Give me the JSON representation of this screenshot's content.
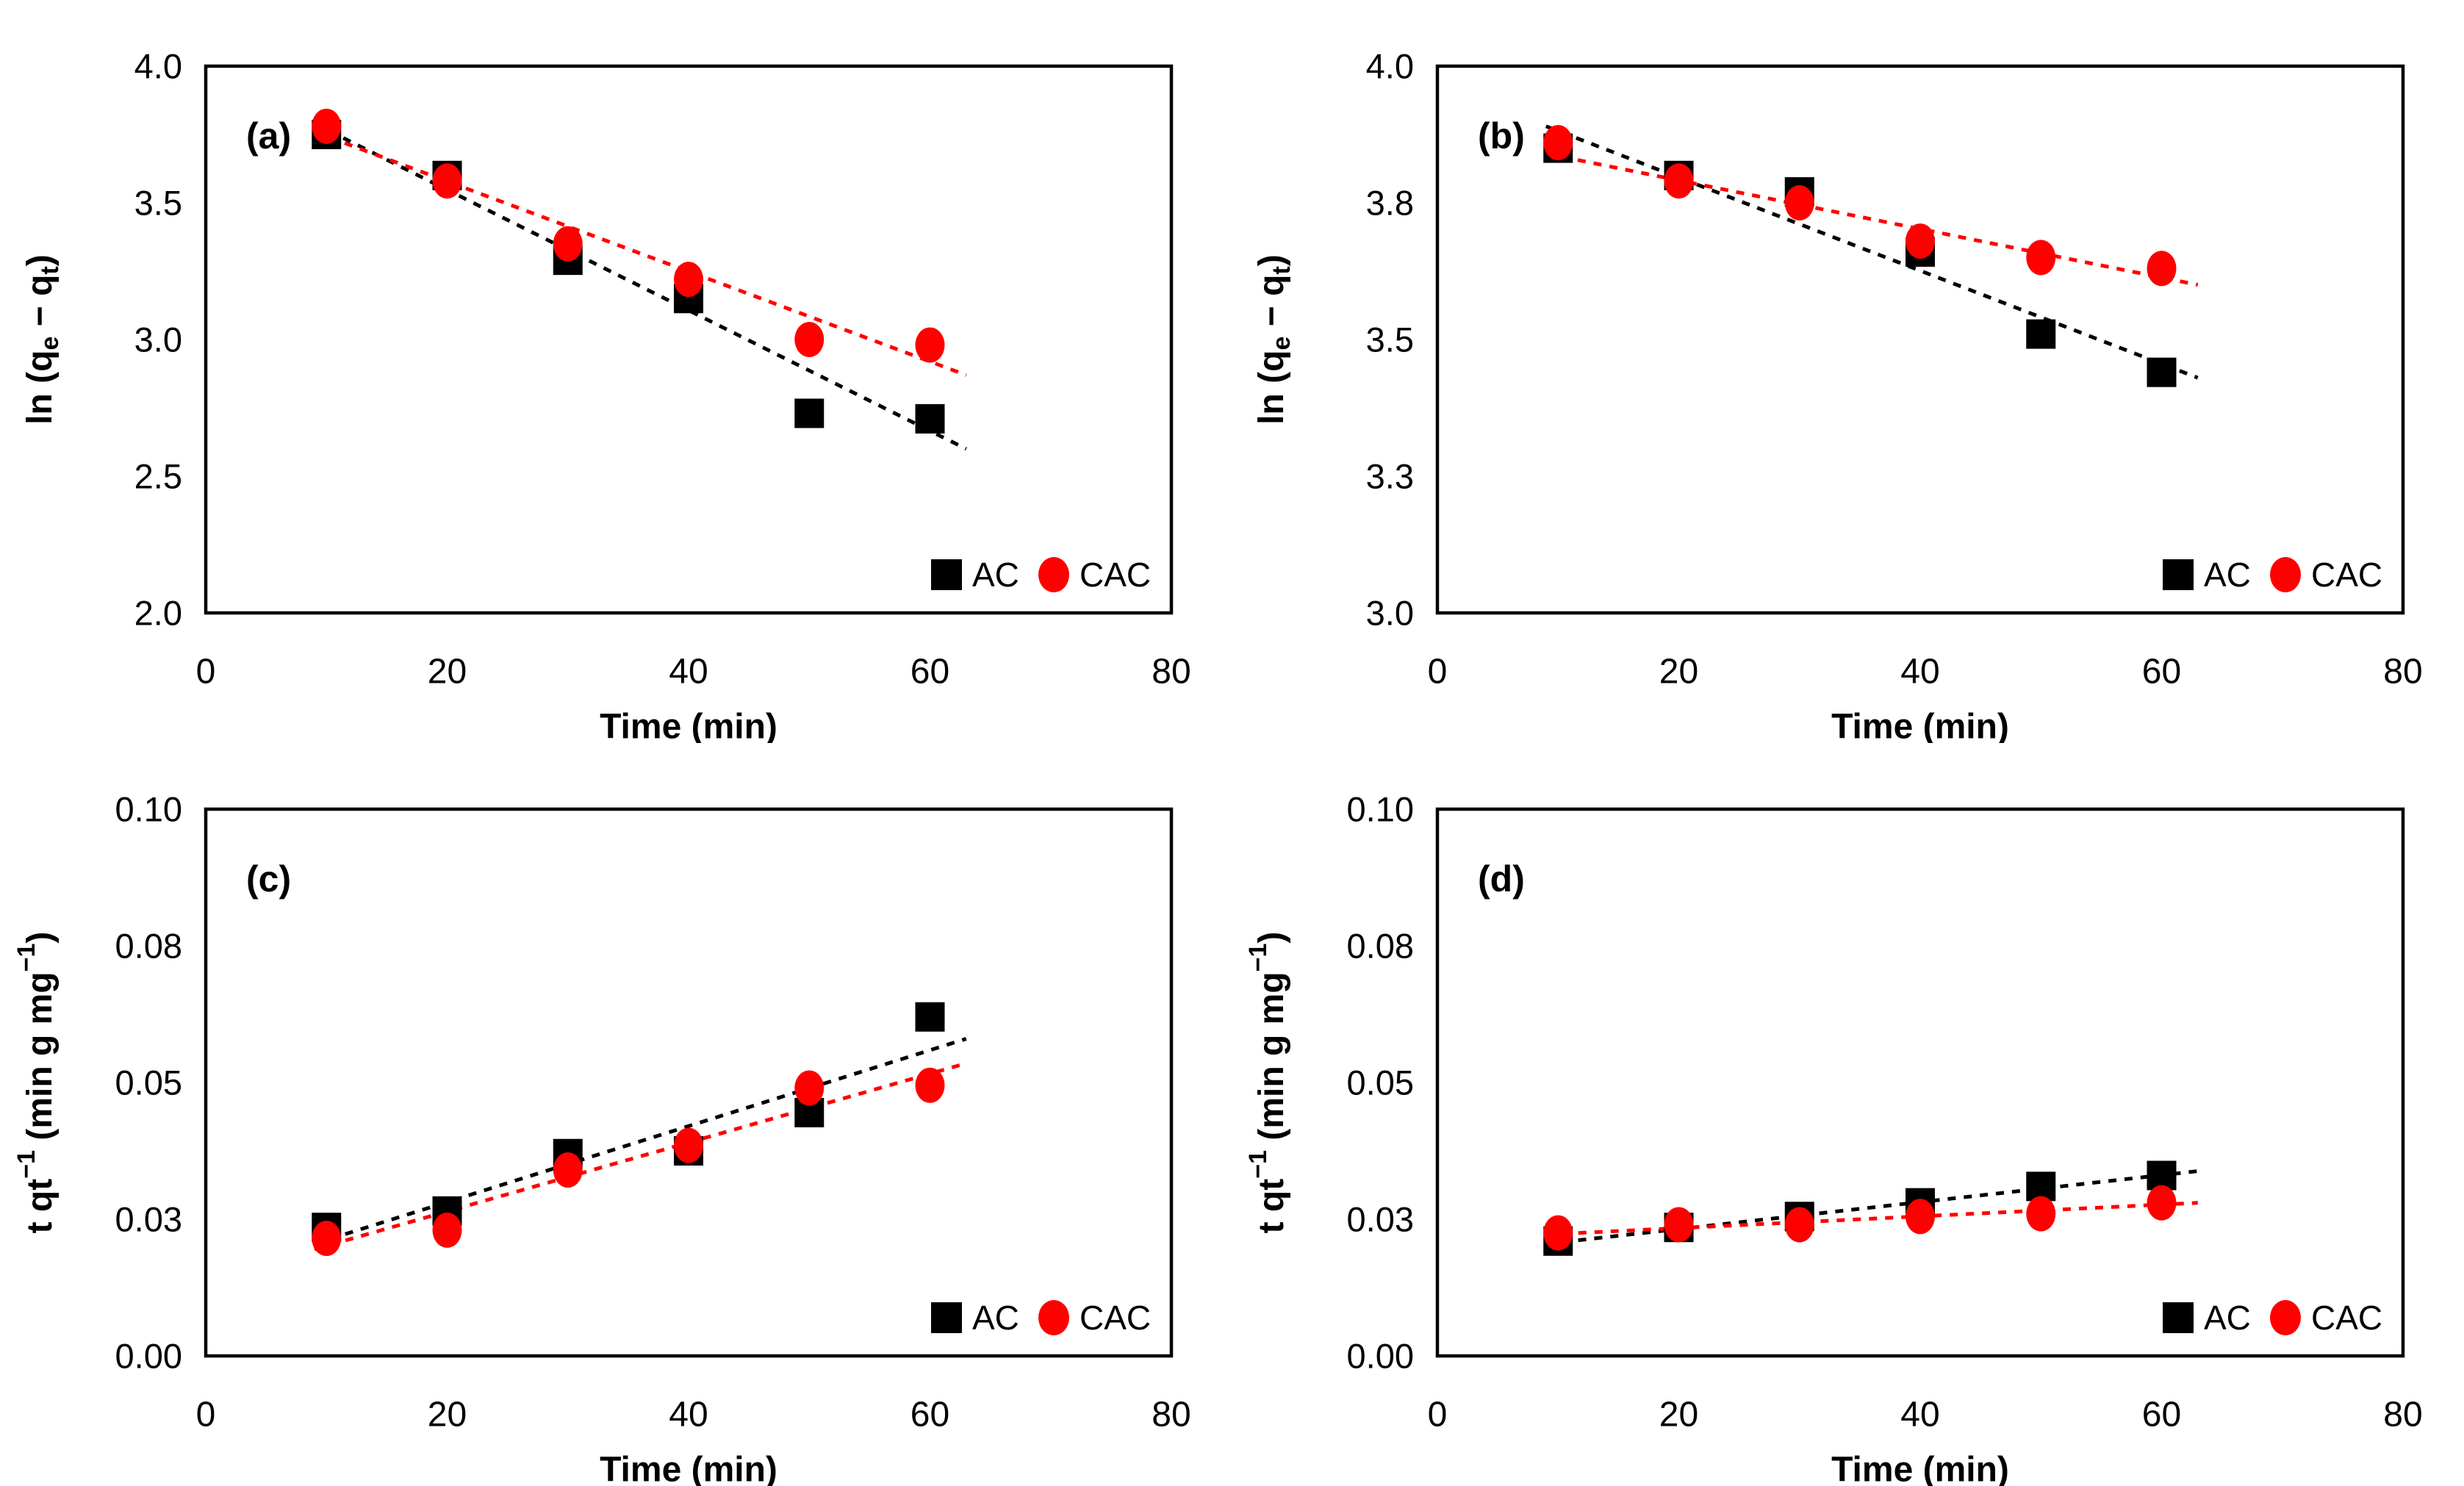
{
  "figure": {
    "background": "#ffffff",
    "text_color": "#000000",
    "series_colors": {
      "AC": "#000000",
      "CAC": "#ff0000"
    }
  },
  "chart_data": [
    {
      "type": "scatter",
      "panel_label": "(a)",
      "xlabel": "Time (min)",
      "ylabel": "ln (qe − qt)",
      "ylabel_rich": [
        {
          "t": "ln (q"
        },
        {
          "t": "e",
          "script": "sub"
        },
        {
          "t": " − q"
        },
        {
          "t": "t",
          "script": "sub"
        },
        {
          "t": ")"
        }
      ],
      "xlim": [
        0,
        80
      ],
      "ylim": [
        2.0,
        4.0
      ],
      "xtick_values": [
        0,
        20,
        40,
        60,
        80
      ],
      "xtick_labels": [
        "0",
        "20",
        "40",
        "60",
        "80"
      ],
      "ytick_values": [
        2.0,
        2.5,
        3.0,
        3.5,
        4.0
      ],
      "ytick_labels": [
        "2.0",
        "2.5",
        "3.0",
        "3.5",
        "4.0"
      ],
      "grid": false,
      "legend_position": "bottom-right",
      "series": [
        {
          "name": "AC",
          "marker": "square",
          "color": "#000000",
          "x": [
            10,
            20,
            30,
            40,
            50,
            60
          ],
          "y": [
            3.75,
            3.6,
            3.29,
            3.15,
            2.73,
            2.71
          ],
          "trendline": {
            "style": "dashed",
            "x": [
              9,
              63
            ],
            "y": [
              3.79,
              2.6
            ]
          }
        },
        {
          "name": "CAC",
          "marker": "circle",
          "color": "#ff0000",
          "x": [
            10,
            20,
            30,
            40,
            50,
            60
          ],
          "y": [
            3.78,
            3.58,
            3.35,
            3.22,
            3.0,
            2.98
          ],
          "trendline": {
            "style": "dashed",
            "x": [
              9,
              63
            ],
            "y": [
              3.76,
              2.87
            ]
          }
        }
      ]
    },
    {
      "type": "scatter",
      "panel_label": "(b)",
      "xlabel": "Time (min)",
      "ylabel": "ln (qe − qt)",
      "ylabel_rich": [
        {
          "t": "ln (q"
        },
        {
          "t": "e",
          "script": "sub"
        },
        {
          "t": " − q"
        },
        {
          "t": "t",
          "script": "sub"
        },
        {
          "t": ")"
        }
      ],
      "xlim": [
        0,
        80
      ],
      "ylim": [
        3.0,
        4.0
      ],
      "xtick_values": [
        0,
        20,
        40,
        60,
        80
      ],
      "xtick_labels": [
        "0",
        "20",
        "40",
        "60",
        "80"
      ],
      "ytick_values": [
        3.0,
        3.25,
        3.5,
        3.75,
        4.0
      ],
      "ytick_labels": [
        "3.0",
        "3.3",
        "3.5",
        "3.8",
        "4.0"
      ],
      "grid": false,
      "legend_position": "bottom-right",
      "series": [
        {
          "name": "AC",
          "marker": "square",
          "color": "#000000",
          "x": [
            10,
            20,
            30,
            40,
            50,
            60
          ],
          "y": [
            3.85,
            3.8,
            3.77,
            3.66,
            3.51,
            3.44
          ],
          "trendline": {
            "style": "dashed",
            "x": [
              9,
              63
            ],
            "y": [
              3.89,
              3.43
            ]
          }
        },
        {
          "name": "CAC",
          "marker": "circle",
          "color": "#ff0000",
          "x": [
            10,
            20,
            30,
            40,
            50,
            60
          ],
          "y": [
            3.86,
            3.79,
            3.75,
            3.68,
            3.65,
            3.63
          ],
          "trendline": {
            "style": "dashed",
            "x": [
              9,
              63
            ],
            "y": [
              3.84,
              3.6
            ]
          }
        }
      ]
    },
    {
      "type": "scatter",
      "panel_label": "(c)",
      "xlabel": "Time (min)",
      "ylabel": "t qt−1 (min g mg−1)",
      "ylabel_rich": [
        {
          "t": "t qt"
        },
        {
          "t": "−1",
          "script": "sup"
        },
        {
          "t": " (min g mg"
        },
        {
          "t": "−1",
          "script": "sup"
        },
        {
          "t": ")"
        }
      ],
      "xlim": [
        0,
        80
      ],
      "ylim": [
        0.0,
        0.1
      ],
      "xtick_values": [
        0,
        20,
        40,
        60,
        80
      ],
      "xtick_labels": [
        "0",
        "20",
        "40",
        "60",
        "80"
      ],
      "ytick_values": [
        0.0,
        0.025,
        0.05,
        0.075,
        0.1
      ],
      "ytick_labels": [
        "0.00",
        "0.03",
        "0.05",
        "0.08",
        "0.10"
      ],
      "grid": false,
      "legend_position": "bottom-right",
      "series": [
        {
          "name": "AC",
          "marker": "square",
          "color": "#000000",
          "x": [
            10,
            20,
            30,
            40,
            50,
            60
          ],
          "y": [
            0.0235,
            0.0265,
            0.037,
            0.0375,
            0.0445,
            0.062
          ],
          "trendline": {
            "style": "dashed",
            "x": [
              9,
              63
            ],
            "y": [
              0.0205,
              0.058
            ]
          }
        },
        {
          "name": "CAC",
          "marker": "circle",
          "color": "#ff0000",
          "x": [
            10,
            20,
            30,
            40,
            50,
            60
          ],
          "y": [
            0.0215,
            0.023,
            0.034,
            0.0385,
            0.049,
            0.0495
          ],
          "trendline": {
            "style": "dashed",
            "x": [
              9,
              63
            ],
            "y": [
              0.0195,
              0.0535
            ]
          }
        }
      ]
    },
    {
      "type": "scatter",
      "panel_label": "(d)",
      "xlabel": "Time (min)",
      "ylabel": "t qt−1 (min g mg−1)",
      "ylabel_rich": [
        {
          "t": "t qt"
        },
        {
          "t": "−1",
          "script": "sup"
        },
        {
          "t": " (min g mg"
        },
        {
          "t": "−1",
          "script": "sup"
        },
        {
          "t": ")"
        }
      ],
      "xlim": [
        0,
        80
      ],
      "ylim": [
        0.0,
        0.1
      ],
      "xtick_values": [
        0,
        20,
        40,
        60,
        80
      ],
      "xtick_labels": [
        "0",
        "20",
        "40",
        "60",
        "80"
      ],
      "ytick_values": [
        0.0,
        0.025,
        0.05,
        0.075,
        0.1
      ],
      "ytick_labels": [
        "0.00",
        "0.03",
        "0.05",
        "0.08",
        "0.10"
      ],
      "grid": false,
      "legend_position": "bottom-right",
      "series": [
        {
          "name": "AC",
          "marker": "square",
          "color": "#000000",
          "x": [
            10,
            20,
            30,
            40,
            50,
            60
          ],
          "y": [
            0.021,
            0.0235,
            0.0255,
            0.028,
            0.031,
            0.033
          ],
          "trendline": {
            "style": "dashed",
            "x": [
              9,
              63
            ],
            "y": [
              0.0205,
              0.0338
            ]
          }
        },
        {
          "name": "CAC",
          "marker": "circle",
          "color": "#ff0000",
          "x": [
            10,
            20,
            30,
            40,
            50,
            60
          ],
          "y": [
            0.0225,
            0.024,
            0.024,
            0.0255,
            0.026,
            0.028
          ],
          "trendline": {
            "style": "dashed",
            "x": [
              9,
              63
            ],
            "y": [
              0.0222,
              0.028
            ]
          }
        }
      ]
    }
  ]
}
